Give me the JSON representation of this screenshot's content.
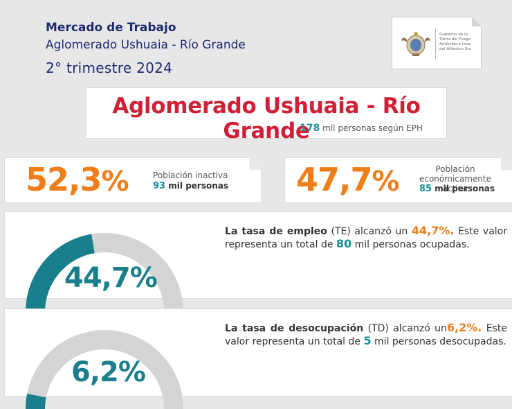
{
  "header": {
    "line1": "Mercado de Trabajo",
    "line2": "Aglomerado Ushuaia - Río Grande",
    "line3": "2° trimestre 2024"
  },
  "logo": {
    "lines": [
      "Gobierno de la",
      "Tierra del Fuego",
      "Antártida e Islas",
      "del Atlántico Sur"
    ],
    "icon": "provincial-seal-icon"
  },
  "region": {
    "title": "Aglomerado Ushuaia - Río Grande",
    "population": "178",
    "population_suffix": "mil personas según EPH"
  },
  "inactive": {
    "pct": "52,3",
    "pct_symbol": "%",
    "label": "Población inactiva",
    "value": "93",
    "value_suffix": "mil personas"
  },
  "active": {
    "pct": "47,7",
    "pct_symbol": "%",
    "label_line1": "Población",
    "label_line2": "económicamente activa",
    "value": "85",
    "value_suffix": "mil personas"
  },
  "employment": {
    "gauge_value": "44,7%",
    "fraction": 0.447,
    "t1": "La tasa de empleo",
    "t2": " (TE) alcanzó un ",
    "rate": "44,7%.",
    "t3": " Este valor representa un total de ",
    "total": "80",
    "t4": " mil personas ocupadas."
  },
  "unemployment": {
    "gauge_value": "6,2%",
    "fraction": 0.062,
    "t1": "La tasa de desocupación",
    "t2": " (TD) alcanzó un",
    "rate": "6,2%.",
    "t3": " Este valor representa un total de ",
    "total": "5",
    "t4": " mil personas desocupadas."
  },
  "colors": {
    "navy": "#1e2a6e",
    "red": "#cf2038",
    "orange": "#ef7d1a",
    "teal": "#1a7f8c",
    "gauge_track": "#d4d4d4"
  }
}
